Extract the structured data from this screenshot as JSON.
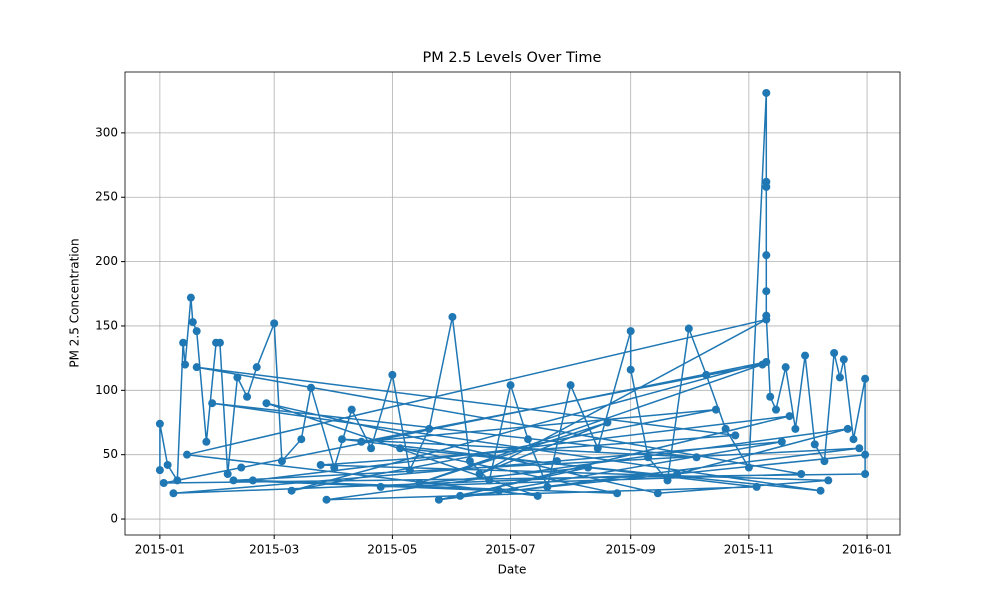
{
  "chart_data": {
    "type": "line",
    "title": "PM 2.5 Levels Over Time",
    "x_label": "Date",
    "y_label": "PM 2.5 Concentration",
    "xlim": [
      "2014-12-14",
      "2016-01-18"
    ],
    "xticks": [
      {
        "value": "2015-01-01",
        "label": "2015-01"
      },
      {
        "value": "2015-03-01",
        "label": "2015-03"
      },
      {
        "value": "2015-05-01",
        "label": "2015-05"
      },
      {
        "value": "2015-07-01",
        "label": "2015-07"
      },
      {
        "value": "2015-09-01",
        "label": "2015-09"
      },
      {
        "value": "2015-11-01",
        "label": "2015-11"
      },
      {
        "value": "2016-01-01",
        "label": "2016-01"
      }
    ],
    "ylim": [
      -12.4,
      347.3
    ],
    "yticks": [
      0,
      50,
      100,
      150,
      200,
      250,
      300
    ],
    "grid": true,
    "series": [
      {
        "name": "PM 2.5",
        "color": "#1f77b4",
        "x": [
          "2015-01-01",
          "2015-01-01",
          "2015-01-05",
          "2015-01-10",
          "2015-01-13",
          "2015-01-14",
          "2015-01-17",
          "2015-01-18",
          "2015-01-20",
          "2015-01-25",
          "2015-01-30",
          "2015-02-01",
          "2015-02-05",
          "2015-02-10",
          "2015-02-15",
          "2015-02-20",
          "2015-03-01",
          "2015-03-05",
          "2015-03-15",
          "2015-03-20",
          "2015-04-01",
          "2015-04-10",
          "2015-04-20",
          "2015-05-01",
          "2015-05-10",
          "2015-05-20",
          "2015-06-01",
          "2015-06-10",
          "2015-06-20",
          "2015-07-01",
          "2015-07-10",
          "2015-07-20",
          "2015-08-01",
          "2015-08-15",
          "2015-09-01",
          "2015-09-01",
          "2015-09-10",
          "2015-09-20",
          "2015-10-01",
          "2015-10-10",
          "2015-10-20",
          "2015-11-01",
          "2015-11-10",
          "2015-11-10",
          "2015-11-10",
          "2015-11-10",
          "2015-11-10",
          "2015-11-10",
          "2015-11-12",
          "2015-11-15",
          "2015-11-20",
          "2015-11-25",
          "2015-11-30",
          "2015-12-05",
          "2015-12-10",
          "2015-12-15",
          "2015-12-18",
          "2015-12-20",
          "2015-12-25",
          "2015-12-31",
          "2015-12-31",
          "2015-01-03",
          "2015-02-12",
          "2015-11-10",
          "2015-03-10",
          "2015-10-15",
          "2015-04-15",
          "2015-11-08",
          "2015-05-15",
          "2015-08-20",
          "2015-06-15",
          "2015-11-10",
          "2015-01-15",
          "2015-07-15",
          "2015-02-25",
          "2015-09-15",
          "2015-12-12",
          "2015-03-25",
          "2015-10-25",
          "2015-01-20",
          "2015-11-28",
          "2015-04-25",
          "2015-08-10",
          "2015-05-25",
          "2015-12-28",
          "2015-02-08",
          "2015-06-25",
          "2015-11-18",
          "2015-07-25",
          "2015-01-08",
          "2015-09-25",
          "2015-12-22",
          "2015-03-28",
          "2015-11-05",
          "2015-04-05",
          "2015-10-05",
          "2015-01-28",
          "2015-12-08",
          "2015-05-05",
          "2015-08-25",
          "2015-02-18",
          "2015-11-22",
          "2015-06-05",
          "2015-12-31"
        ],
        "values": [
          38,
          74,
          42,
          30,
          137,
          120,
          172,
          153,
          146,
          60,
          137,
          137,
          35,
          110,
          95,
          118,
          152,
          45,
          62,
          102,
          40,
          85,
          55,
          112,
          38,
          70,
          157,
          45,
          30,
          104,
          62,
          25,
          104,
          55,
          146,
          116,
          48,
          30,
          148,
          112,
          70,
          40,
          331,
          262,
          258,
          205,
          177,
          158,
          95,
          85,
          118,
          70,
          127,
          58,
          45,
          129,
          110,
          124,
          62,
          109,
          35,
          28,
          40,
          122,
          22,
          85,
          60,
          120,
          28,
          75,
          35,
          155,
          50,
          18,
          90,
          20,
          30,
          42,
          65,
          118,
          35,
          25,
          40,
          15,
          55,
          30,
          22,
          60,
          45,
          20,
          35,
          70,
          15,
          25,
          62,
          48,
          90,
          22,
          55,
          20,
          30,
          80,
          18,
          50
        ]
      }
    ]
  }
}
